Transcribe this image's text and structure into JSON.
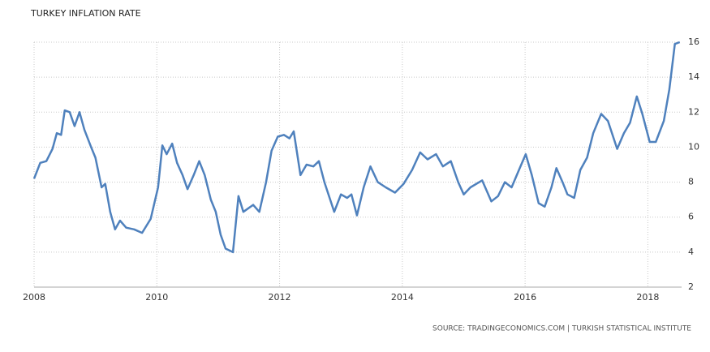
{
  "chart_data": {
    "type": "line",
    "title": "TURKEY INFLATION RATE",
    "source": "SOURCE: TRADINGECONOMICS.COM | TURKISH STATISTICAL INSTITUTE",
    "x": [
      2008.0,
      2008.1,
      2008.2,
      2008.3,
      2008.37,
      2008.44,
      2008.5,
      2008.58,
      2008.66,
      2008.74,
      2008.82,
      2008.93,
      2009.0,
      2009.1,
      2009.16,
      2009.24,
      2009.32,
      2009.4,
      2009.5,
      2009.63,
      2009.76,
      2009.9,
      2010.02,
      2010.09,
      2010.16,
      2010.25,
      2010.33,
      2010.42,
      2010.5,
      2010.6,
      2010.69,
      2010.78,
      2010.88,
      2010.96,
      2011.04,
      2011.12,
      2011.24,
      2011.33,
      2011.41,
      2011.57,
      2011.67,
      2011.78,
      2011.87,
      2011.97,
      2012.07,
      2012.16,
      2012.23,
      2012.34,
      2012.44,
      2012.55,
      2012.64,
      2012.73,
      2012.89,
      2013.0,
      2013.1,
      2013.17,
      2013.26,
      2013.37,
      2013.48,
      2013.6,
      2013.73,
      2013.88,
      2014.02,
      2014.16,
      2014.29,
      2014.41,
      2014.55,
      2014.66,
      2014.79,
      2014.91,
      2015.0,
      2015.11,
      2015.3,
      2015.45,
      2015.56,
      2015.67,
      2015.78,
      2015.9,
      2016.01,
      2016.11,
      2016.22,
      2016.32,
      2016.43,
      2016.51,
      2016.61,
      2016.69,
      2016.8,
      2016.9,
      2017.01,
      2017.11,
      2017.24,
      2017.35,
      2017.5,
      2017.61,
      2017.71,
      2017.82,
      2017.91,
      2018.03,
      2018.13,
      2018.26,
      2018.35,
      2018.44,
      2018.52
    ],
    "series": [
      {
        "name": "Inflation rate",
        "color": "#4f81bd",
        "values": [
          8.2,
          9.1,
          9.2,
          9.9,
          10.8,
          10.7,
          12.1,
          12.0,
          11.2,
          12.0,
          11.0,
          10.0,
          9.4,
          7.7,
          7.9,
          6.3,
          5.3,
          5.8,
          5.4,
          5.3,
          5.1,
          5.9,
          7.7,
          10.1,
          9.6,
          10.2,
          9.1,
          8.4,
          7.6,
          8.4,
          9.2,
          8.4,
          7.0,
          6.3,
          5.0,
          4.2,
          4.0,
          7.2,
          6.3,
          6.7,
          6.3,
          8.0,
          9.8,
          10.6,
          10.7,
          10.5,
          10.9,
          8.4,
          9.0,
          8.9,
          9.2,
          8.0,
          6.3,
          7.3,
          7.1,
          7.3,
          6.1,
          7.7,
          8.9,
          8.0,
          7.7,
          7.4,
          7.9,
          8.7,
          9.7,
          9.3,
          9.6,
          8.9,
          9.2,
          8.0,
          7.3,
          7.7,
          8.1,
          6.9,
          7.2,
          8.0,
          7.7,
          8.7,
          9.6,
          8.4,
          6.8,
          6.6,
          7.7,
          8.8,
          8.0,
          7.3,
          7.1,
          8.7,
          9.4,
          10.8,
          11.9,
          11.5,
          9.9,
          10.8,
          11.4,
          12.9,
          11.9,
          10.3,
          10.3,
          11.5,
          13.3,
          15.9,
          16.0
        ]
      }
    ],
    "xlim": [
      2008,
      2018.55
    ],
    "xticks": [
      2008,
      2010,
      2012,
      2014,
      2016,
      2018
    ],
    "ylim": [
      2,
      16
    ],
    "yticks": [
      2,
      4,
      6,
      8,
      10,
      12,
      14,
      16
    ],
    "grid": true
  }
}
